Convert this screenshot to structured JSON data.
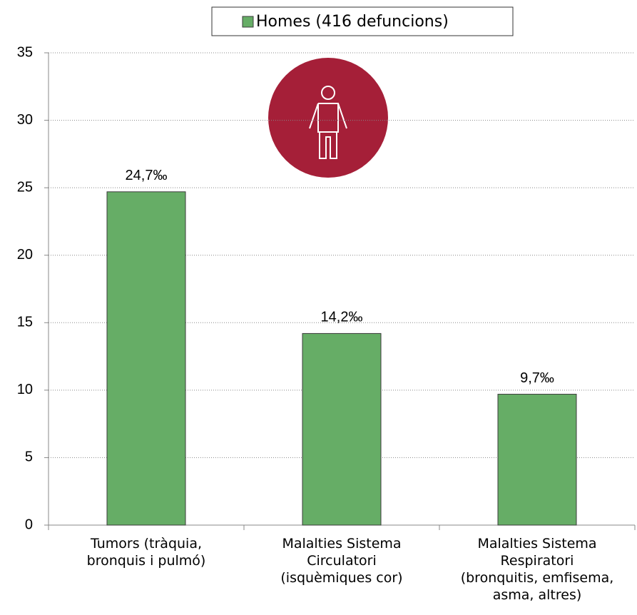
{
  "chart_data": {
    "type": "bar",
    "categories": [
      "Tumors (tràquia,\nbronquis i pulmó)",
      "Malalties Sistema\nCirculatori\n(isquèmiques cor)",
      "Malalties Sistema\nRespiratori\n(bronquitis, emfisema,\nasma, altres)"
    ],
    "series": [
      {
        "name": "Homes (416 defuncions)",
        "color": "#66ad66",
        "values": [
          24.7,
          14.2,
          9.7
        ],
        "value_labels": [
          "24,7‰",
          "14,2‰",
          "9,7‰"
        ]
      }
    ],
    "ylim": [
      0,
      35
    ],
    "yticks": [
      0,
      5,
      10,
      15,
      20,
      25,
      30,
      35
    ],
    "grid": true,
    "legend": "top"
  }
}
